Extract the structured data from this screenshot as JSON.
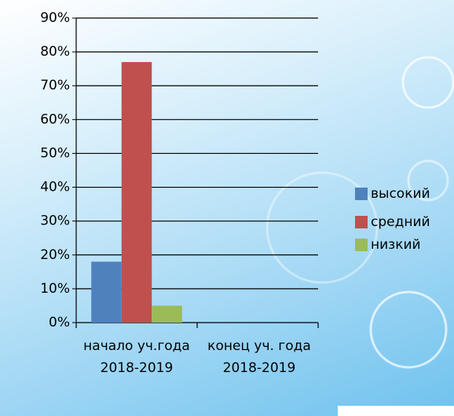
{
  "chart_data": {
    "type": "bar",
    "categories": [
      "начало уч.года 2018-2019",
      "конец уч. года 2018-2019"
    ],
    "series": [
      {
        "name": "высокий",
        "color": "#4f81bd",
        "values": [
          18,
          null
        ]
      },
      {
        "name": "средний",
        "color": "#c0504d",
        "values": [
          77,
          null
        ]
      },
      {
        "name": "низкий",
        "color": "#9bbb59",
        "values": [
          5,
          null
        ]
      }
    ],
    "ylim": [
      0,
      90
    ],
    "yticks": [
      {
        "value": 0,
        "label": "0%"
      },
      {
        "value": 10,
        "label": "10%"
      },
      {
        "value": 20,
        "label": "20%"
      },
      {
        "value": 30,
        "label": "30%"
      },
      {
        "value": 40,
        "label": "40%"
      },
      {
        "value": 50,
        "label": "50%"
      },
      {
        "value": 60,
        "label": "60%"
      },
      {
        "value": 70,
        "label": "70%"
      },
      {
        "value": 80,
        "label": "80%"
      },
      {
        "value": 90,
        "label": "90%"
      }
    ],
    "grid": true,
    "legend": "right"
  }
}
